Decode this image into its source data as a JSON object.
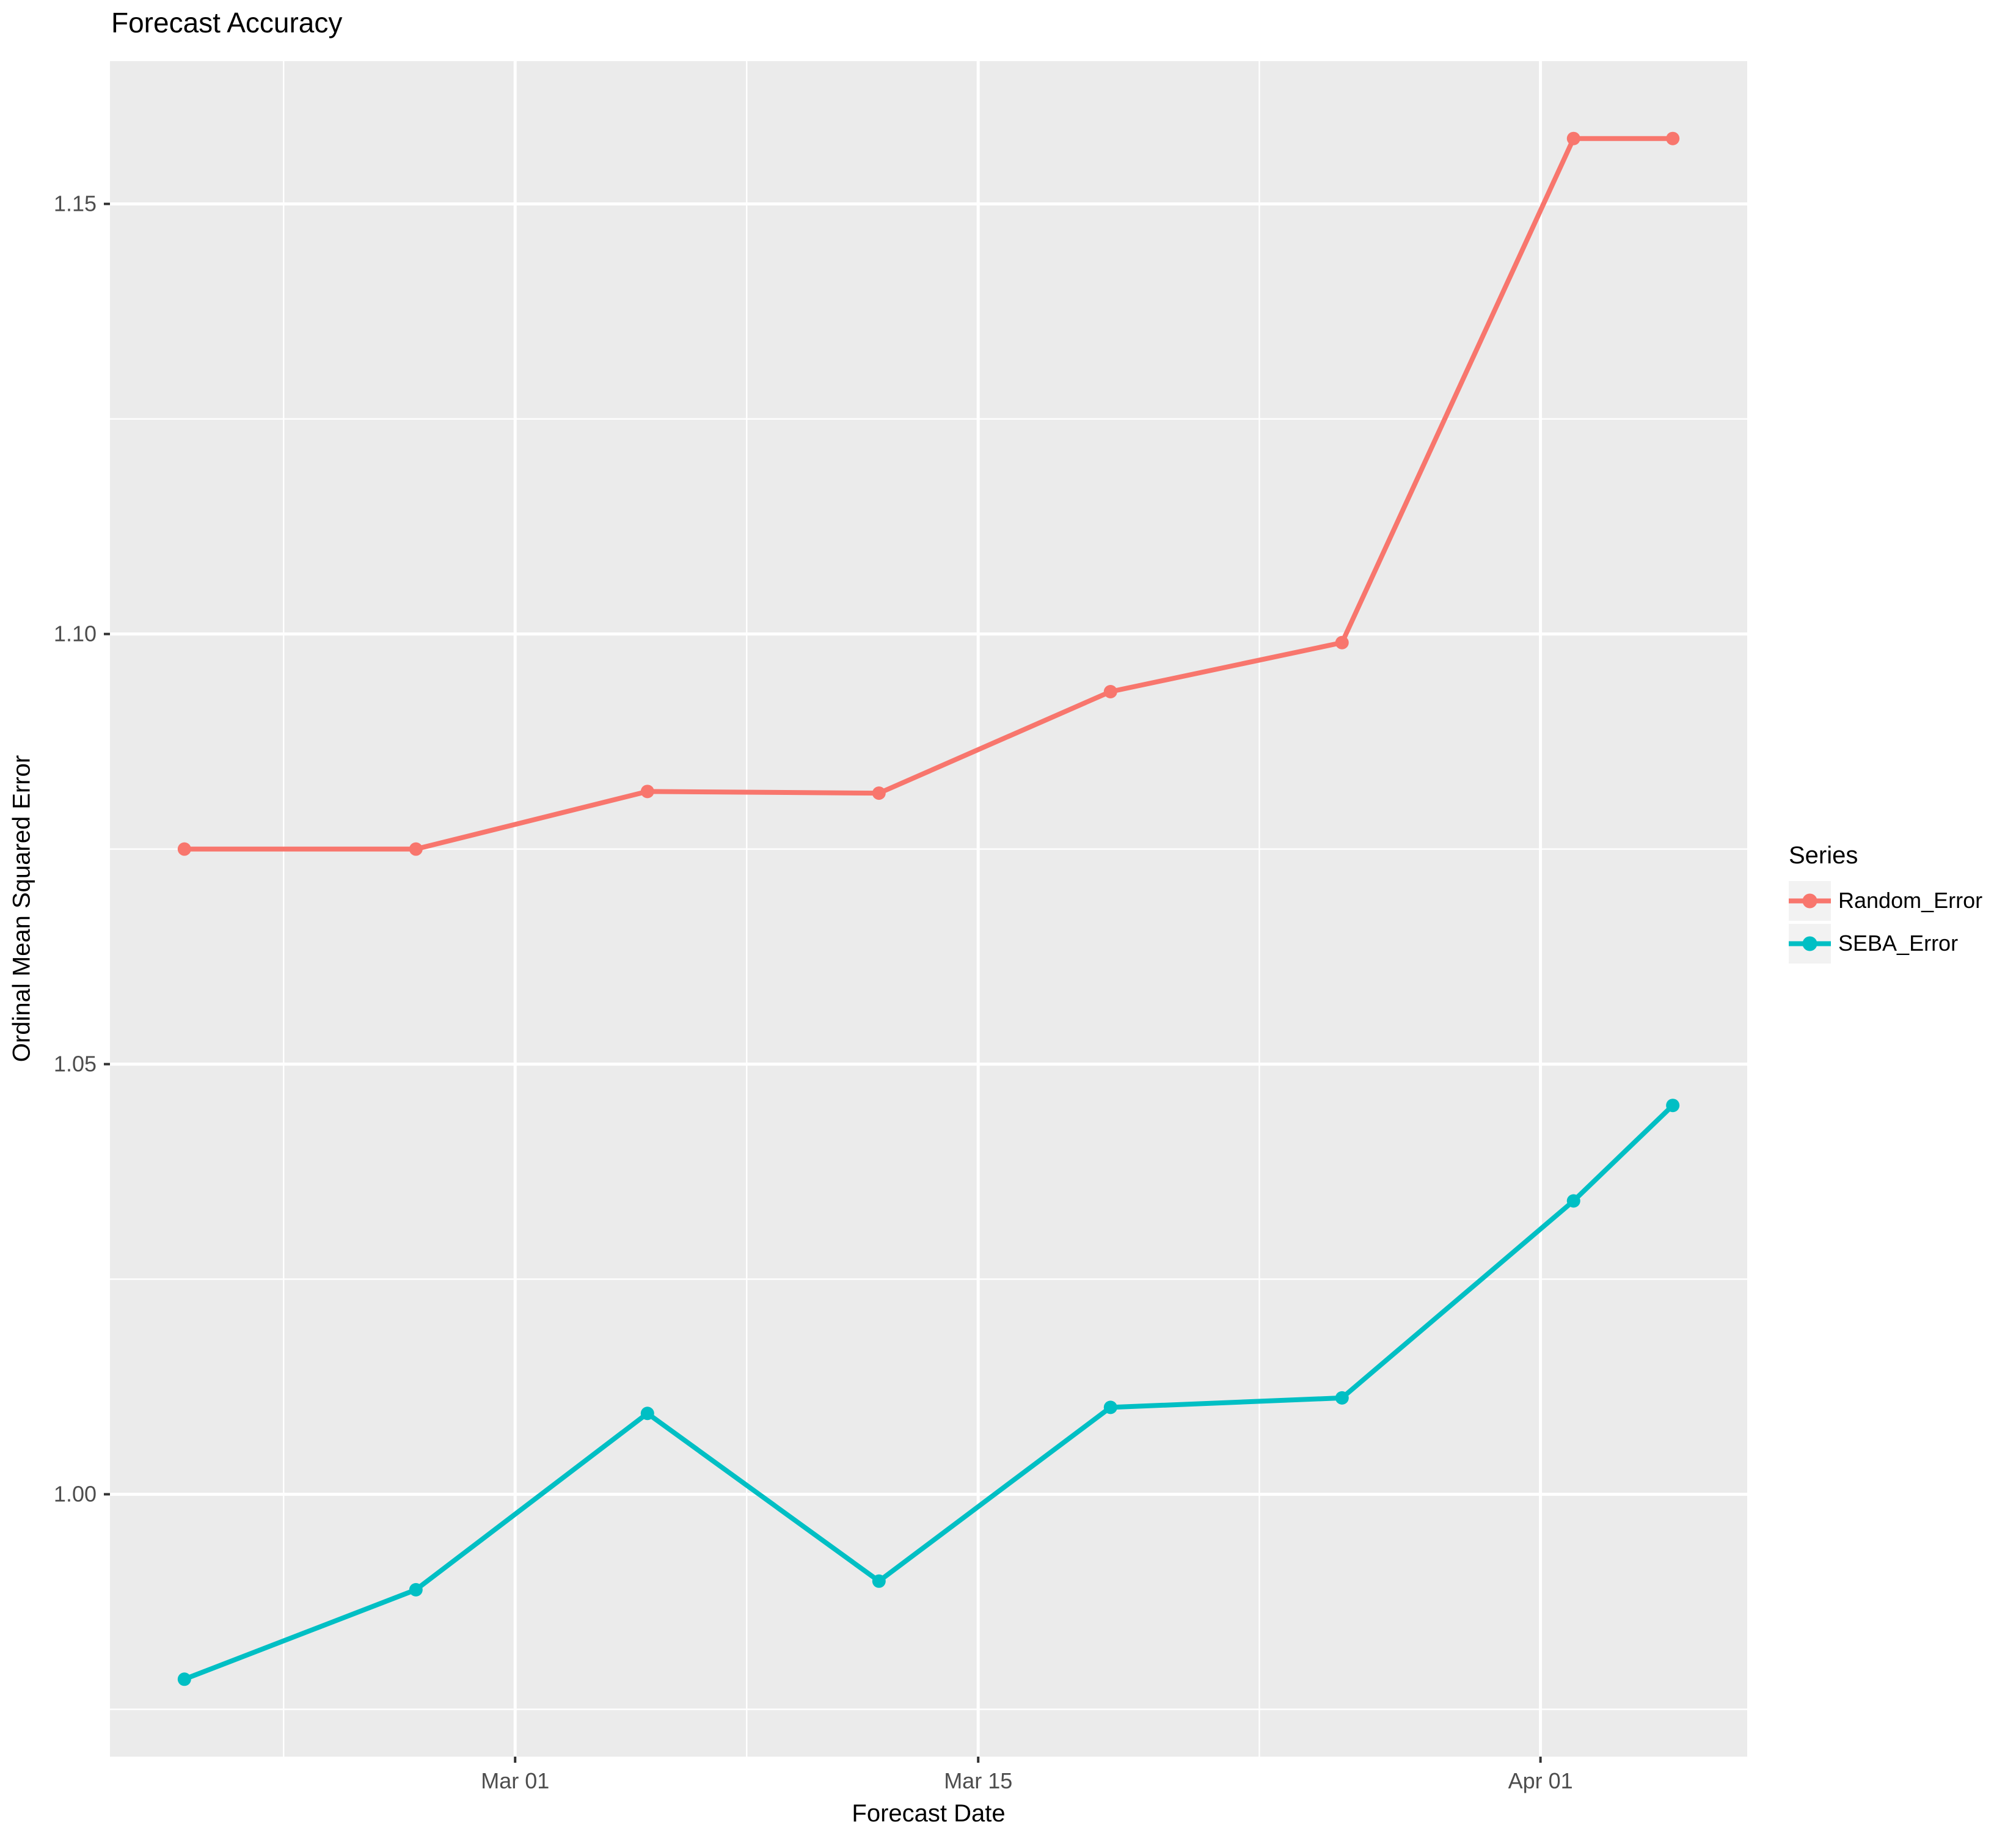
{
  "title": "Forecast Accuracy",
  "axes": {
    "x": {
      "label": "Forecast Date"
    },
    "y": {
      "label": "Ordinal Mean Squared Error"
    }
  },
  "legend": {
    "title": "Series",
    "position": "right",
    "entries": [
      {
        "label": "Random_Error",
        "color": "#F8766D"
      },
      {
        "label": "SEBA_Error",
        "color": "#00BFC4"
      }
    ]
  },
  "chart_data": {
    "type": "line",
    "title": "Forecast Accuracy",
    "xlabel": "Forecast Date",
    "ylabel": "Ordinal Mean Squared Error",
    "x": [
      "Feb 19",
      "Feb 26",
      "Mar 05",
      "Mar 12",
      "Mar 19",
      "Mar 26",
      "Apr 02",
      "Apr 05"
    ],
    "x_days": [
      0,
      7,
      14,
      21,
      28,
      35,
      42,
      45
    ],
    "series": [
      {
        "name": "Random_Error",
        "color": "#F8766D",
        "values": [
          1.075,
          1.075,
          1.0817,
          1.0815,
          1.0933,
          1.099,
          1.1576,
          1.1576
        ]
      },
      {
        "name": "SEBA_Error",
        "color": "#00BFC4",
        "values": [
          0.9785,
          0.9889,
          1.0094,
          0.9899,
          1.0101,
          1.0112,
          1.0341,
          1.0452
        ]
      }
    ],
    "x_tick_labels": [
      "Mar 01",
      "Mar 15",
      "Apr 01"
    ],
    "x_tick_days": [
      10,
      24,
      41
    ],
    "x_minor_days": [
      3,
      17,
      32.5
    ],
    "xlim_days": [
      -2.25,
      47.25
    ],
    "y_tick_labels": [
      "1.00",
      "1.05",
      "1.10",
      "1.15"
    ],
    "y_ticks": [
      1.0,
      1.05,
      1.1,
      1.15
    ],
    "y_minor": [
      0.975,
      1.025,
      1.075,
      1.125
    ],
    "ylim": [
      0.9695,
      1.1666
    ],
    "grid": true,
    "legend_position": "right"
  },
  "colors": {
    "panel_background": "#EBEBEB",
    "grid": "#FFFFFF",
    "tick_mark": "#333333",
    "tick_label": "#4D4D4D",
    "text": "#000000",
    "legend_key_background": "#F2F2F2",
    "page_background": "#FFFFFF"
  }
}
